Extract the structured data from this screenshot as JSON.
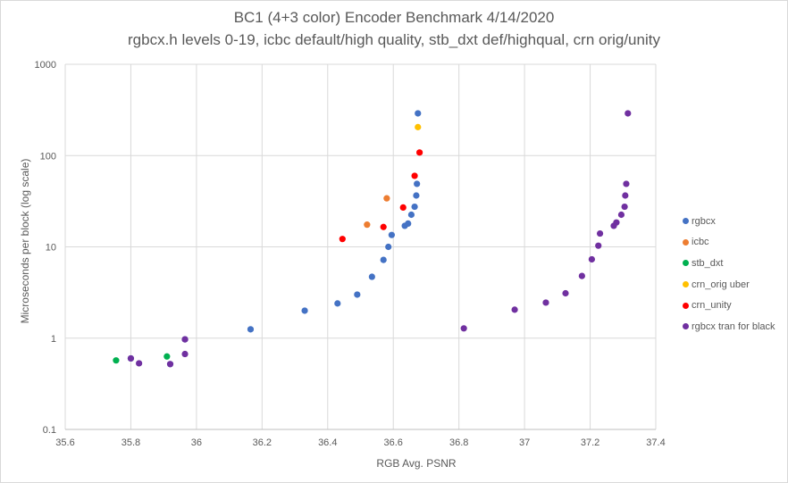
{
  "chart_data": {
    "type": "scatter",
    "title": "BC1 (4+3 color) Encoder Benchmark 4/14/2020",
    "subtitle": "rgbcx.h levels 0-19, icbc default/high quality, stb_dxt def/highqual, crn orig/unity",
    "xlabel": "RGB Avg. PSNR",
    "ylabel": "Microseconds per block (log scale)",
    "xlim": [
      35.6,
      37.4
    ],
    "ylim": [
      0.1,
      1000
    ],
    "yscale": "log",
    "x_ticks": [
      "35.6",
      "35.8",
      "36",
      "36.2",
      "36.4",
      "36.6",
      "36.8",
      "37",
      "37.2",
      "37.4"
    ],
    "y_ticks": [
      "0.1",
      "1",
      "10",
      "100",
      "1000"
    ],
    "grid": "vertical and horizontal",
    "legend_position": "right",
    "series": [
      {
        "name": "rgbcx",
        "color": "#4472c4",
        "points": [
          [
            35.8,
            0.6
          ],
          [
            35.92,
            0.52
          ],
          [
            35.965,
            0.97
          ],
          [
            36.165,
            1.25
          ],
          [
            36.33,
            2.0
          ],
          [
            36.43,
            2.4
          ],
          [
            36.49,
            3.0
          ],
          [
            36.535,
            4.7
          ],
          [
            36.57,
            7.2
          ],
          [
            36.585,
            10.0
          ],
          [
            36.595,
            13.5
          ],
          [
            36.635,
            17.0
          ],
          [
            36.645,
            18.0
          ],
          [
            36.655,
            22.5
          ],
          [
            36.665,
            27.5
          ],
          [
            36.67,
            36.5
          ],
          [
            36.672,
            49.0
          ],
          [
            36.675,
            290.0
          ]
        ]
      },
      {
        "name": "icbc",
        "color": "#ed7d31",
        "points": [
          [
            36.52,
            17.5
          ],
          [
            36.58,
            34.0
          ]
        ]
      },
      {
        "name": "stb_dxt",
        "color": "#00b050",
        "points": [
          [
            35.755,
            0.57
          ],
          [
            35.91,
            0.63
          ]
        ]
      },
      {
        "name": "crn_orig uber",
        "color": "#ffc000",
        "points": [
          [
            36.675,
            205.0
          ]
        ]
      },
      {
        "name": "crn_unity",
        "color": "#ff0000",
        "points": [
          [
            36.445,
            12.2
          ],
          [
            36.57,
            16.5
          ],
          [
            36.63,
            27.0
          ],
          [
            36.665,
            60.0
          ],
          [
            36.68,
            108.0
          ]
        ]
      },
      {
        "name": "rgbcx tran for black",
        "color": "#7030a0",
        "points": [
          [
            35.8,
            0.6
          ],
          [
            35.825,
            0.53
          ],
          [
            35.92,
            0.52
          ],
          [
            35.965,
            0.67
          ],
          [
            35.965,
            0.97
          ],
          [
            36.815,
            1.28
          ],
          [
            36.97,
            2.05
          ],
          [
            37.065,
            2.45
          ],
          [
            37.125,
            3.1
          ],
          [
            37.175,
            4.8
          ],
          [
            37.205,
            7.3
          ],
          [
            37.225,
            10.3
          ],
          [
            37.23,
            14.0
          ],
          [
            37.272,
            17.0
          ],
          [
            37.28,
            18.5
          ],
          [
            37.295,
            22.5
          ],
          [
            37.305,
            27.5
          ],
          [
            37.307,
            36.5
          ],
          [
            37.31,
            49.0
          ],
          [
            37.315,
            290.0
          ]
        ]
      }
    ]
  }
}
